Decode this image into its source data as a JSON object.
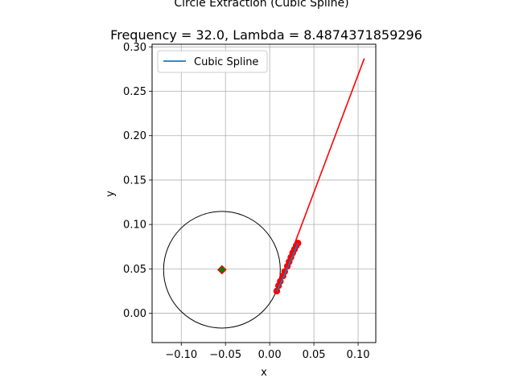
{
  "chart_data": {
    "type": "line",
    "title": "Circle Extraction (Cubic Spline)",
    "subtitle": "Frequency = 32.0, Lambda = 8.4874371859296",
    "xlabel": "x",
    "ylabel": "y",
    "xlim": [
      -0.133,
      0.12
    ],
    "ylim": [
      -0.033,
      0.303
    ],
    "xticks": [
      -0.1,
      -0.05,
      0.0,
      0.05,
      0.1
    ],
    "xtick_labels": [
      "−0.10",
      "−0.05",
      "0.00",
      "0.05",
      "0.10"
    ],
    "yticks": [
      0.0,
      0.05,
      0.1,
      0.15,
      0.2,
      0.25,
      0.3
    ],
    "ytick_labels": [
      "0.00",
      "0.05",
      "0.10",
      "0.15",
      "0.20",
      "0.25",
      "0.30"
    ],
    "grid": true,
    "aspect": "equal",
    "legend": {
      "location": "upper left",
      "entries": [
        {
          "label": "Cubic Spline",
          "color": "#1f77b4"
        }
      ]
    },
    "series": [
      {
        "name": "Cubic Spline",
        "type": "line",
        "color": "#1f77b4",
        "x": [
          0.008,
          0.011,
          0.014,
          0.017,
          0.02,
          0.023,
          0.026,
          0.029,
          0.032
        ],
        "y": [
          0.025,
          0.031,
          0.037,
          0.044,
          0.051,
          0.058,
          0.065,
          0.072,
          0.079
        ]
      },
      {
        "type": "scatter",
        "color": "#ff0000",
        "x": [
          0.008,
          0.01,
          0.012,
          0.015,
          0.017,
          0.02,
          0.022,
          0.024,
          0.026,
          0.028,
          0.03,
          0.032
        ],
        "y": [
          0.025,
          0.031,
          0.036,
          0.042,
          0.047,
          0.053,
          0.058,
          0.063,
          0.068,
          0.072,
          0.076,
          0.079
        ]
      },
      {
        "type": "line",
        "color": "#ff0000",
        "x": [
          0.008,
          0.107
        ],
        "y": [
          0.025,
          0.287
        ]
      },
      {
        "type": "circle",
        "color": "#000000",
        "center": [
          -0.054,
          0.049
        ],
        "radius": 0.066
      },
      {
        "type": "marker",
        "marker": "diamond",
        "color": "#008000",
        "edgecolor": "#ff0000",
        "x": [
          -0.054
        ],
        "y": [
          0.049
        ]
      }
    ]
  }
}
